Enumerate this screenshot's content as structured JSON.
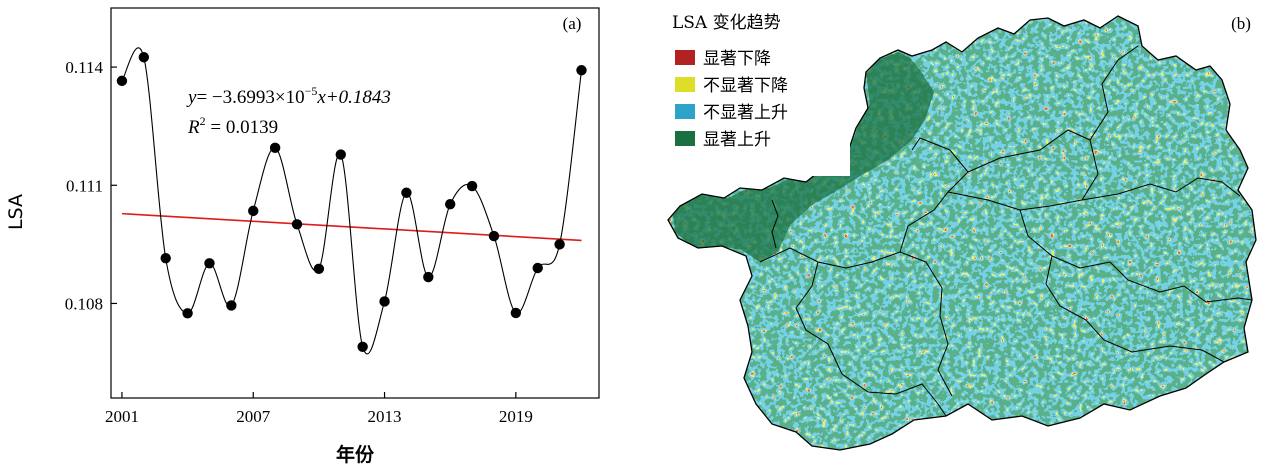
{
  "chart_data": [
    {
      "type": "line",
      "panel_label": "(a)",
      "xlabel": "年份",
      "ylabel": "LSA",
      "xlim": [
        2000.5,
        2022.8
      ],
      "ylim": [
        0.1056,
        0.1155
      ],
      "xticks": [
        2001,
        2007,
        2013,
        2019
      ],
      "yticks": [
        0.108,
        0.111,
        0.114
      ],
      "ytick_labels": [
        "0.108",
        "0.111",
        "0.114"
      ],
      "series": [
        {
          "name": "LSA",
          "style": "smooth-line-with-markers",
          "x": [
            2001,
            2002,
            2003,
            2004,
            2005,
            2006,
            2007,
            2008,
            2009,
            2010,
            2011,
            2012,
            2013,
            2014,
            2015,
            2016,
            2017,
            2018,
            2019,
            2020,
            2021,
            2022
          ],
          "y": [
            0.11365,
            0.11425,
            0.10915,
            0.10775,
            0.10902,
            0.10795,
            0.11035,
            0.11195,
            0.11001,
            0.10888,
            0.11178,
            0.1069,
            0.10805,
            0.11081,
            0.10867,
            0.11052,
            0.11098,
            0.10971,
            0.10776,
            0.1089,
            0.1095,
            0.11392
          ]
        },
        {
          "name": "linear-fit",
          "style": "line",
          "color": "#dd1c1c",
          "slope": -3.6993e-05,
          "intercept": 0.1843,
          "x": [
            2001,
            2022
          ],
          "y": [
            0.11028,
            0.1096
          ]
        }
      ],
      "annotation": {
        "equation_prefix": "y",
        "equation_mid": "= −3.6993×10",
        "equation_exp": "−5",
        "equation_suffix": "x+0.1843",
        "r2_prefix": "R",
        "r2_sup": "2",
        "r2_value": " = 0.0139"
      }
    },
    {
      "type": "map",
      "panel_label": "(b)",
      "legend_title": "LSA 变化趋势",
      "legend": [
        {
          "label": "显著下降",
          "color": "#b22222"
        },
        {
          "label": "不显著下降",
          "color": "#dede28"
        },
        {
          "label": "不显著上升",
          "color": "#2ea3c8"
        },
        {
          "label": "显著上升",
          "color": "#1a7040"
        }
      ]
    }
  ]
}
